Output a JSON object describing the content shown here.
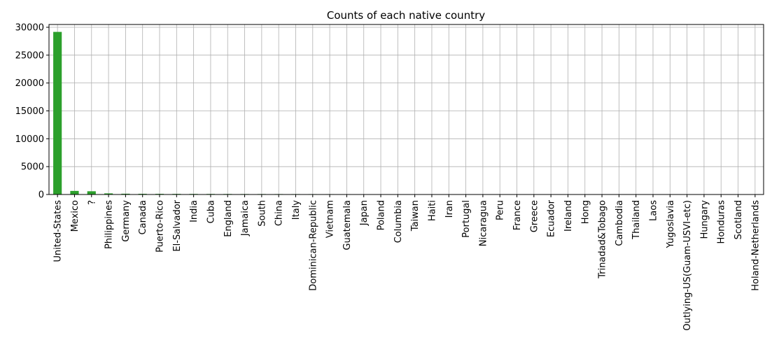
{
  "chart_data": {
    "type": "bar",
    "title": "Counts of each native country",
    "xlabel": "",
    "ylabel": "",
    "ylim": [
      0,
      30500
    ],
    "yticks": [
      0,
      5000,
      10000,
      15000,
      20000,
      25000,
      30000
    ],
    "grid": true,
    "bar_color": "#2ca02c",
    "categories": [
      "United-States",
      "Mexico",
      "?",
      "Philippines",
      "Germany",
      "Canada",
      "Puerto-Rico",
      "El-Salvador",
      "India",
      "Cuba",
      "England",
      "Jamaica",
      "South",
      "China",
      "Italy",
      "Dominican-Republic",
      "Vietnam",
      "Guatemala",
      "Japan",
      "Poland",
      "Columbia",
      "Taiwan",
      "Haiti",
      "Iran",
      "Portugal",
      "Nicaragua",
      "Peru",
      "France",
      "Greece",
      "Ecuador",
      "Ireland",
      "Hong",
      "Trinadad&Tobago",
      "Cambodia",
      "Thailand",
      "Laos",
      "Yugoslavia",
      "Outlying-US(Guam-USVI-etc)",
      "Hungary",
      "Honduras",
      "Scotland",
      "Holand-Netherlands"
    ],
    "values": [
      29170,
      643,
      583,
      198,
      137,
      121,
      114,
      106,
      100,
      95,
      90,
      81,
      80,
      75,
      73,
      70,
      67,
      64,
      62,
      60,
      59,
      51,
      44,
      43,
      37,
      34,
      31,
      29,
      29,
      28,
      24,
      20,
      19,
      19,
      18,
      18,
      16,
      14,
      13,
      13,
      12,
      1
    ]
  }
}
